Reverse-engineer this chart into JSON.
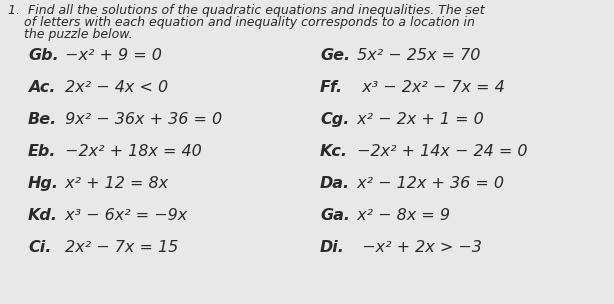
{
  "background_color": "#e8e8e8",
  "title_line1": "1.  Find all the solutions of the quadratic equations and inequalities. The set",
  "title_line2": "    of letters with each equation and inequality corresponds to a location in",
  "title_line3": "    the puzzle below.",
  "left_items": [
    {
      "label": "Gb.",
      "eq": " −x² + 9 = 0"
    },
    {
      "label": "Ac.",
      "eq": " 2x² − 4x < 0"
    },
    {
      "label": "Be.",
      "eq": " 9x² − 36x + 36 = 0"
    },
    {
      "label": "Eb.",
      "eq": " −2x² + 18x = 40"
    },
    {
      "label": "Hg.",
      "eq": " x² + 12 = 8x"
    },
    {
      "label": "Kd.",
      "eq": " x³ − 6x² = −9x"
    },
    {
      "label": "Ci.",
      "eq": " 2x² − 7x = 15"
    }
  ],
  "right_items": [
    {
      "label": "Ge.",
      "eq": " 5x² − 25x = 70"
    },
    {
      "label": "Ff.",
      "eq": "  x³ − 2x² − 7x = 4"
    },
    {
      "label": "Cg.",
      "eq": " x² − 2x + 1 = 0"
    },
    {
      "label": "Kc.",
      "eq": " −2x² + 14x − 24 = 0"
    },
    {
      "label": "Da.",
      "eq": " x² − 12x + 36 = 0"
    },
    {
      "label": "Ga.",
      "eq": " x² − 8x = 9"
    },
    {
      "label": "Di.",
      "eq": "  −x² + 2x > −3"
    }
  ],
  "text_color": "#2a2a2a",
  "font_size_title": 9.0,
  "font_size_eq": 11.5
}
